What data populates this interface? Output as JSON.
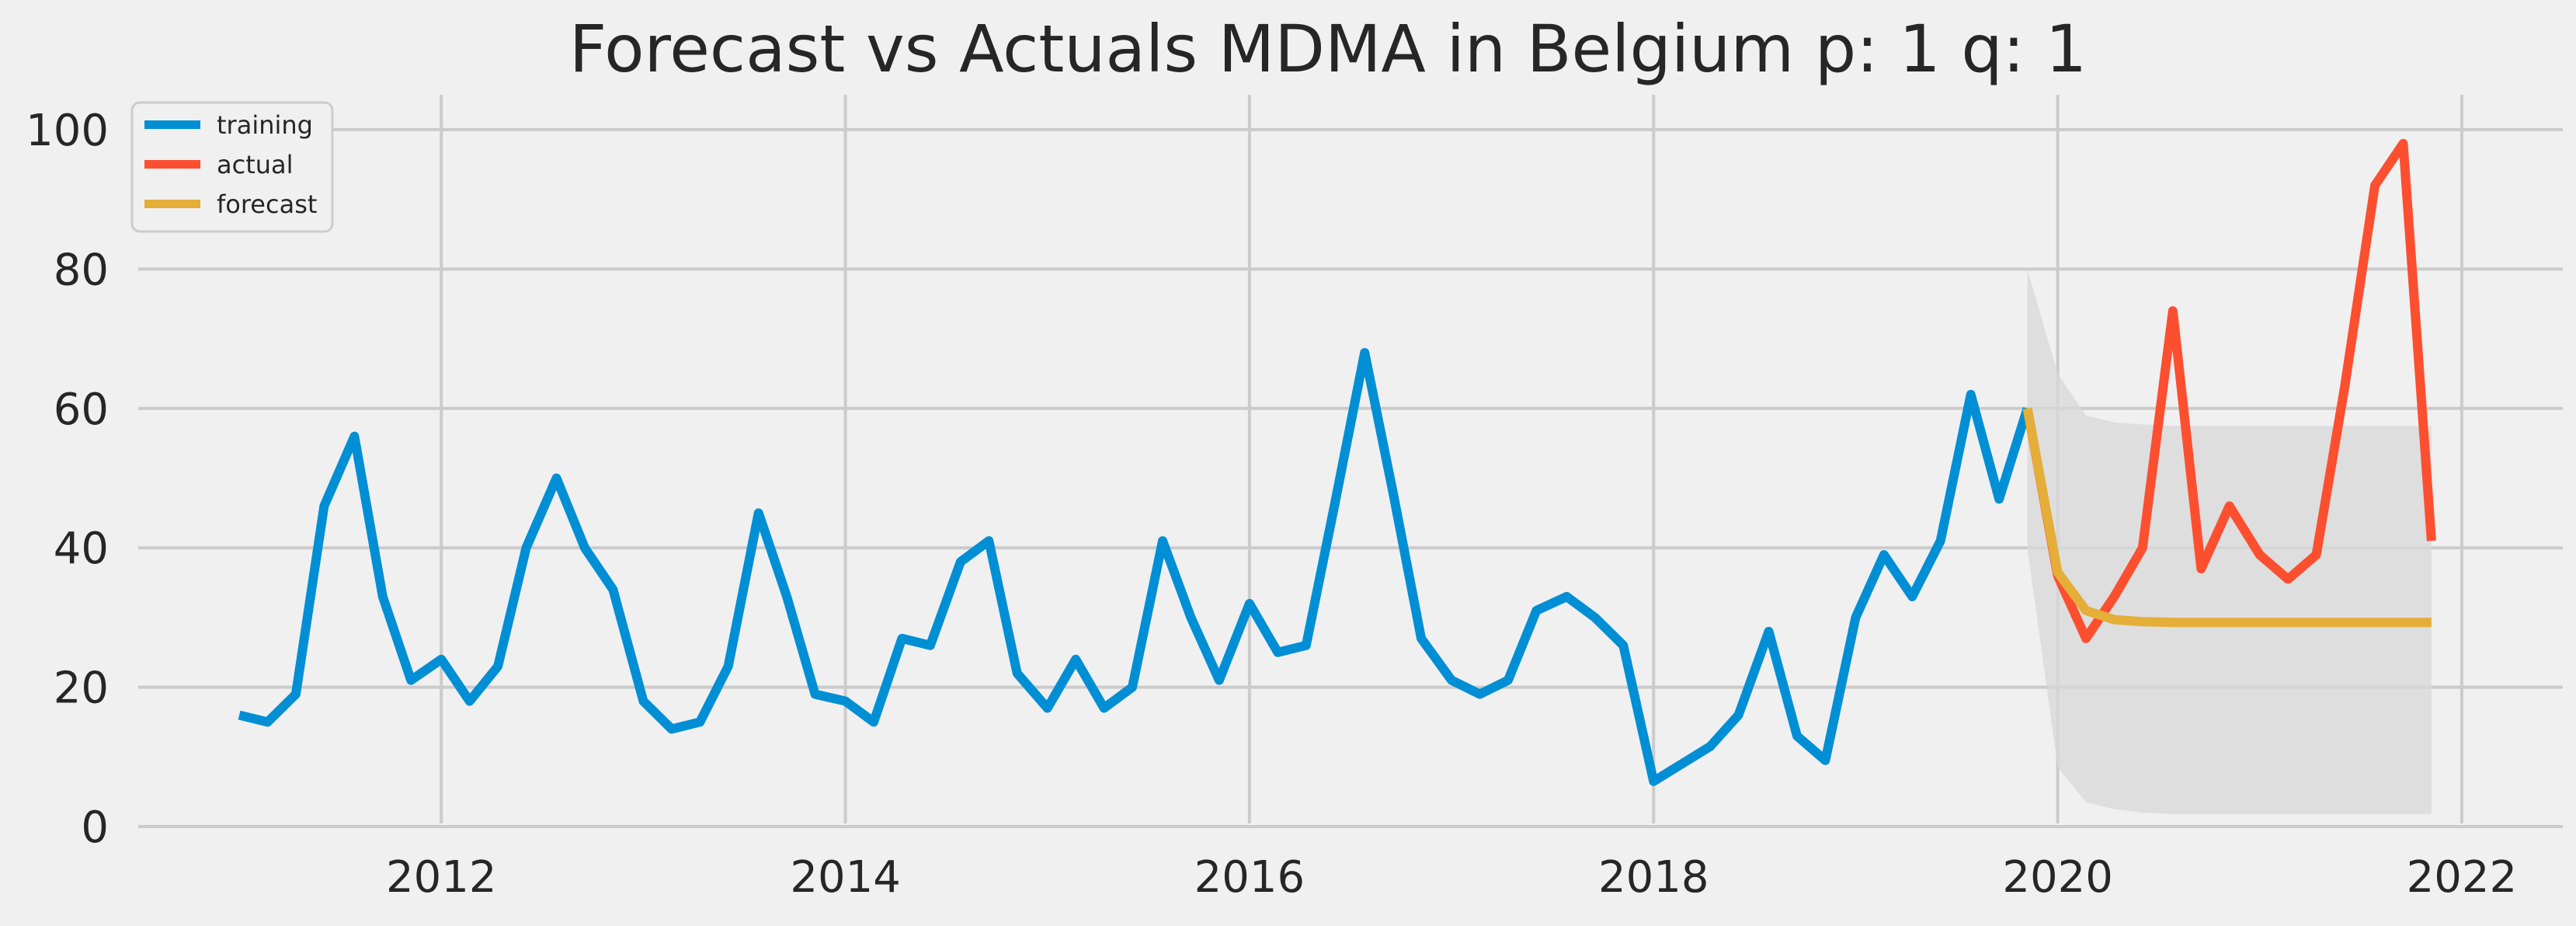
{
  "chart_data": {
    "type": "line",
    "title": "Forecast vs Actuals MDMA in Belgium p: 1 q: 1",
    "xlabel": "",
    "ylabel": "",
    "xlim": [
      2010.5,
      2022.5
    ],
    "ylim": [
      -2,
      103
    ],
    "x_ticks": [
      2012,
      2014,
      2016,
      2018,
      2020,
      2022
    ],
    "x_tick_labels": [
      "2012",
      "2014",
      "2016",
      "2018",
      "2020",
      "2022"
    ],
    "y_ticks": [
      0,
      20,
      40,
      60,
      80,
      100
    ],
    "y_tick_labels": [
      "0",
      "20",
      "40",
      "60",
      "80",
      "100"
    ],
    "grid": true,
    "legend": {
      "location": "top-left",
      "entries": [
        "training",
        "actual",
        "forecast"
      ]
    },
    "series": [
      {
        "name": "training",
        "color": "#008fd5",
        "points": [
          [
            2011.0,
            16
          ],
          [
            2011.14,
            15
          ],
          [
            2011.28,
            19
          ],
          [
            2011.42,
            46
          ],
          [
            2011.57,
            56
          ],
          [
            2011.71,
            33
          ],
          [
            2011.85,
            21
          ],
          [
            2012.0,
            24
          ],
          [
            2012.14,
            18
          ],
          [
            2012.28,
            23
          ],
          [
            2012.42,
            40
          ],
          [
            2012.57,
            50
          ],
          [
            2012.71,
            40
          ],
          [
            2012.85,
            34
          ],
          [
            2013.0,
            18
          ],
          [
            2013.14,
            14
          ],
          [
            2013.28,
            15
          ],
          [
            2013.42,
            23
          ],
          [
            2013.57,
            45
          ],
          [
            2013.71,
            33
          ],
          [
            2013.85,
            19
          ],
          [
            2014.0,
            18
          ],
          [
            2014.14,
            15
          ],
          [
            2014.28,
            27
          ],
          [
            2014.42,
            26
          ],
          [
            2014.57,
            38
          ],
          [
            2014.71,
            41
          ],
          [
            2014.85,
            22
          ],
          [
            2015.0,
            17
          ],
          [
            2015.14,
            24
          ],
          [
            2015.28,
            17
          ],
          [
            2015.42,
            20
          ],
          [
            2015.57,
            41
          ],
          [
            2015.71,
            30
          ],
          [
            2015.85,
            21
          ],
          [
            2016.0,
            32
          ],
          [
            2016.14,
            25
          ],
          [
            2016.28,
            26
          ],
          [
            2016.42,
            46
          ],
          [
            2016.57,
            68
          ],
          [
            2016.71,
            48
          ],
          [
            2016.85,
            27
          ],
          [
            2017.0,
            21
          ],
          [
            2017.14,
            19
          ],
          [
            2017.28,
            21
          ],
          [
            2017.42,
            31
          ],
          [
            2017.57,
            33
          ],
          [
            2017.71,
            30
          ],
          [
            2017.85,
            26
          ],
          [
            2018.0,
            6.5
          ],
          [
            2018.14,
            9
          ],
          [
            2018.28,
            11.5
          ],
          [
            2018.42,
            16
          ],
          [
            2018.57,
            28
          ],
          [
            2018.71,
            13
          ],
          [
            2018.85,
            9.5
          ],
          [
            2019.0,
            30
          ],
          [
            2019.14,
            39
          ],
          [
            2019.28,
            33
          ],
          [
            2019.42,
            41
          ],
          [
            2019.57,
            62
          ],
          [
            2019.71,
            47
          ],
          [
            2019.85,
            60
          ]
        ]
      },
      {
        "name": "actual",
        "color": "#fc4f30",
        "points": [
          [
            2019.85,
            60
          ],
          [
            2020.0,
            36
          ],
          [
            2020.14,
            27
          ],
          [
            2020.28,
            33
          ],
          [
            2020.42,
            40
          ],
          [
            2020.57,
            74
          ],
          [
            2020.71,
            37
          ],
          [
            2020.85,
            46
          ],
          [
            2021.0,
            39
          ],
          [
            2021.14,
            35.5
          ],
          [
            2021.28,
            39
          ],
          [
            2021.42,
            63
          ],
          [
            2021.57,
            92
          ],
          [
            2021.71,
            98
          ],
          [
            2021.85,
            41
          ]
        ]
      },
      {
        "name": "forecast",
        "color": "#e5ae38",
        "points": [
          [
            2019.85,
            60
          ],
          [
            2020.0,
            36.5
          ],
          [
            2020.14,
            31
          ],
          [
            2020.28,
            29.7
          ],
          [
            2020.42,
            29.4
          ],
          [
            2020.57,
            29.3
          ],
          [
            2020.71,
            29.3
          ],
          [
            2020.85,
            29.3
          ],
          [
            2021.0,
            29.3
          ],
          [
            2021.14,
            29.3
          ],
          [
            2021.28,
            29.3
          ],
          [
            2021.42,
            29.3
          ],
          [
            2021.57,
            29.3
          ],
          [
            2021.71,
            29.3
          ],
          [
            2021.85,
            29.3
          ]
        ]
      }
    ],
    "confidence_band": {
      "color": "#d8d8d8",
      "upper": [
        [
          2019.85,
          80
        ],
        [
          2020.0,
          65
        ],
        [
          2020.14,
          59
        ],
        [
          2020.28,
          58
        ],
        [
          2020.42,
          57.7
        ],
        [
          2020.57,
          57.5
        ],
        [
          2020.71,
          57.5
        ],
        [
          2020.85,
          57.5
        ],
        [
          2021.0,
          57.5
        ],
        [
          2021.14,
          57.5
        ],
        [
          2021.28,
          57.5
        ],
        [
          2021.42,
          57.5
        ],
        [
          2021.57,
          57.5
        ],
        [
          2021.71,
          57.5
        ],
        [
          2021.85,
          57.5
        ]
      ],
      "lower": [
        [
          2019.85,
          40
        ],
        [
          2020.0,
          8.5
        ],
        [
          2020.14,
          3.5
        ],
        [
          2020.28,
          2.5
        ],
        [
          2020.42,
          2.0
        ],
        [
          2020.57,
          1.8
        ],
        [
          2020.71,
          1.8
        ],
        [
          2020.85,
          1.8
        ],
        [
          2021.0,
          1.8
        ],
        [
          2021.14,
          1.8
        ],
        [
          2021.28,
          1.8
        ],
        [
          2021.42,
          1.8
        ],
        [
          2021.57,
          1.8
        ],
        [
          2021.71,
          1.8
        ],
        [
          2021.85,
          1.8
        ]
      ]
    }
  }
}
